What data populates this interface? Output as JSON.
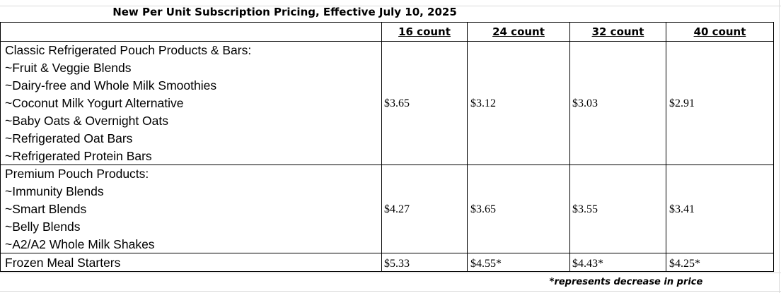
{
  "title": "New Per Unit Subscription Pricing, Effective July 10, 2025",
  "columns": [
    "16 count",
    "24 count",
    "32 count",
    "40 count"
  ],
  "rows": [
    {
      "lines": [
        "Classic Refrigerated Pouch Products & Bars:",
        "~Fruit & Veggie Blends",
        "~Dairy-free and Whole Milk Smoothies",
        "~Coconut Milk Yogurt Alternative",
        "~Baby Oats & Overnight Oats",
        "~Refrigerated Oat Bars",
        "~Refrigerated Protein Bars"
      ],
      "prices": [
        "$3.65",
        "$3.12",
        "$3.03",
        "$2.91"
      ]
    },
    {
      "lines": [
        "Premium Pouch Products:",
        "~Immunity Blends",
        "~Smart Blends",
        "~Belly Blends",
        "~A2/A2 Whole Milk Shakes"
      ],
      "prices": [
        "$4.27",
        "$3.65",
        "$3.55",
        "$3.41"
      ]
    },
    {
      "lines": [
        "Frozen Meal Starters"
      ],
      "prices": [
        "$5.33",
        "$4.55*",
        "$4.43*",
        "$4.25*"
      ]
    }
  ],
  "footnote": "*represents decrease in price"
}
